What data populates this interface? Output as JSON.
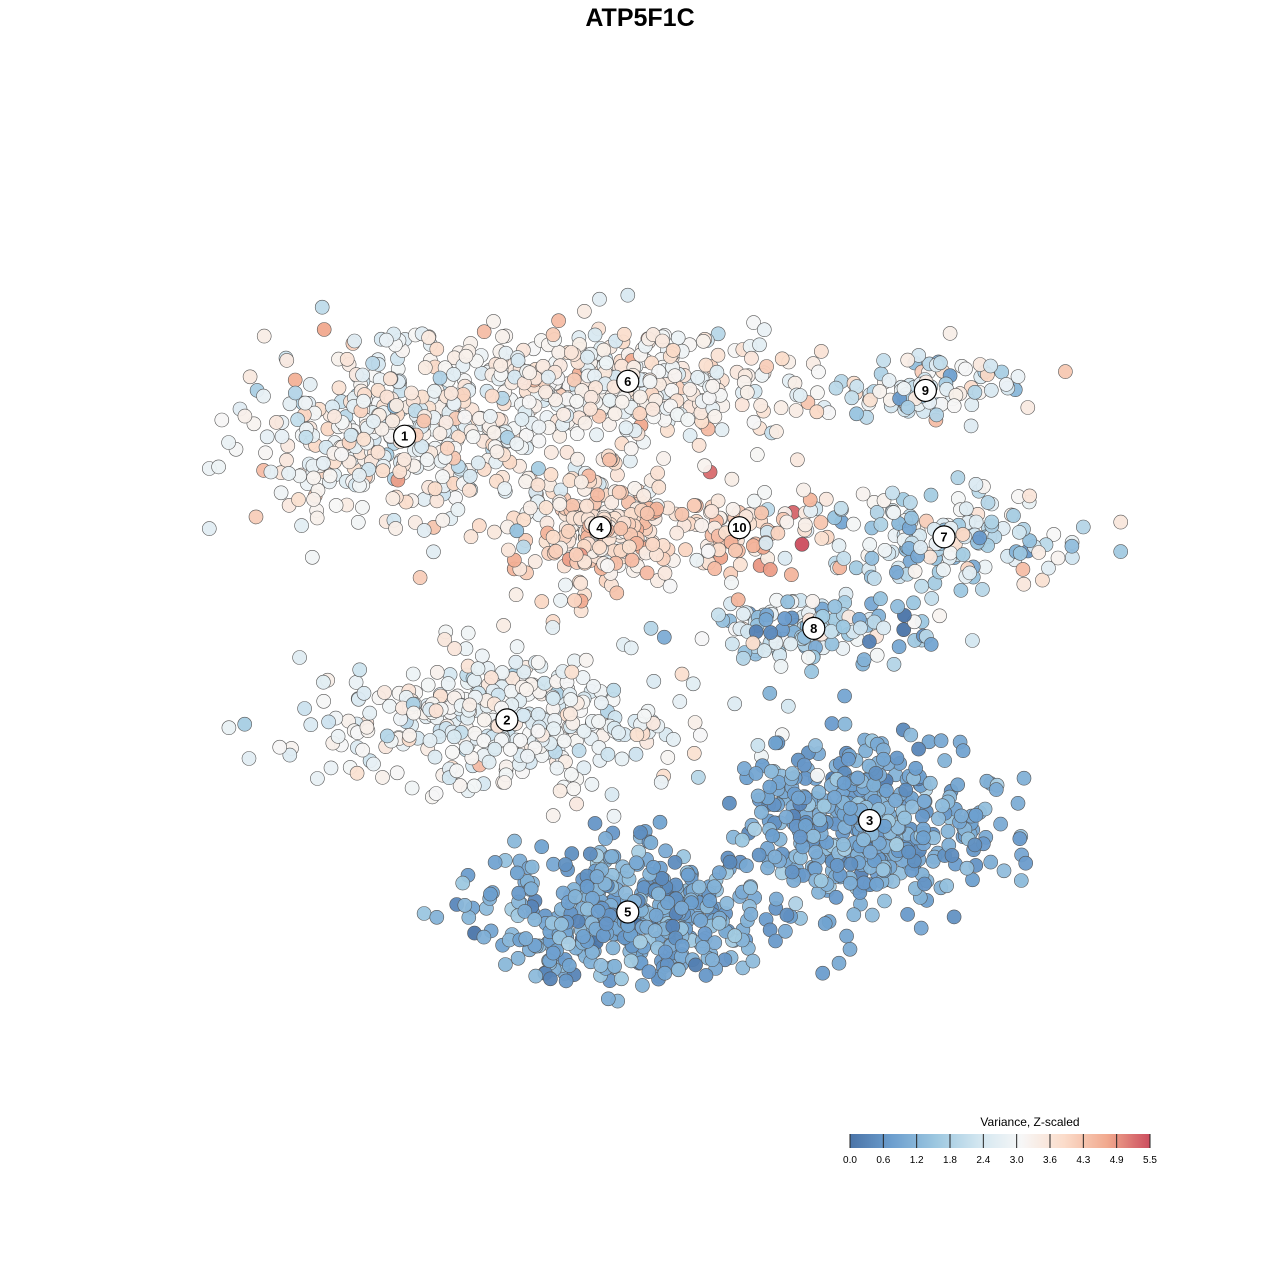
{
  "chart_data": {
    "type": "scatter",
    "title": "ATP5F1C",
    "xlabel": "",
    "ylabel": "",
    "xlim": [
      0,
      100
    ],
    "ylim": [
      0,
      100
    ],
    "grid": false,
    "axes_visible": false,
    "color_scale": {
      "title": "Variance, Z-scaled",
      "min": 0.0,
      "max": 5.5,
      "ticks": [
        "0.0",
        "0.6",
        "1.2",
        "1.8",
        "2.4",
        "3.0",
        "3.6",
        "4.3",
        "4.9",
        "5.5"
      ],
      "colors": [
        "#4a74a8",
        "#6d9fcf",
        "#9cc7e0",
        "#d2e6f0",
        "#f7f7f7",
        "#fbdcca",
        "#f1a98e",
        "#cc4d5e"
      ],
      "placement": "bottom-right"
    },
    "clusters": [
      {
        "label": "1",
        "x": 22,
        "y": 72,
        "sx": 12,
        "sy": 7,
        "n": 420,
        "value": 3.1,
        "value_sd": 0.55
      },
      {
        "label": "6",
        "x": 46,
        "y": 78,
        "sx": 12,
        "sy": 4,
        "n": 380,
        "value": 3.3,
        "value_sd": 0.45
      },
      {
        "label": "4",
        "x": 43,
        "y": 62,
        "sx": 6,
        "sy": 5,
        "n": 220,
        "value": 3.8,
        "value_sd": 0.45
      },
      {
        "label": "10",
        "x": 58,
        "y": 62,
        "sx": 6,
        "sy": 3.5,
        "n": 90,
        "value": 4.0,
        "value_sd": 0.6
      },
      {
        "label": "9",
        "x": 78,
        "y": 77,
        "sx": 7,
        "sy": 2.5,
        "n": 90,
        "value": 2.6,
        "value_sd": 0.8
      },
      {
        "label": "7",
        "x": 80,
        "y": 61,
        "sx": 10,
        "sy": 3.5,
        "n": 160,
        "value": 2.4,
        "value_sd": 0.8
      },
      {
        "label": "8",
        "x": 66,
        "y": 51,
        "sx": 9,
        "sy": 2.5,
        "n": 130,
        "value": 2.0,
        "value_sd": 1.0
      },
      {
        "label": "2",
        "x": 33,
        "y": 41,
        "sx": 14,
        "sy": 5,
        "n": 380,
        "value": 2.9,
        "value_sd": 0.45
      },
      {
        "label": "3",
        "x": 72,
        "y": 30,
        "sx": 9,
        "sy": 6,
        "n": 430,
        "value": 1.0,
        "value_sd": 0.35
      },
      {
        "label": "5",
        "x": 46,
        "y": 20,
        "sx": 10,
        "sy": 5,
        "n": 450,
        "value": 1.0,
        "value_sd": 0.35
      }
    ]
  }
}
